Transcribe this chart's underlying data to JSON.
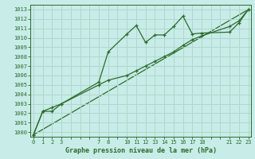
{
  "title": "Graphe pression niveau de la mer (hPa)",
  "bg_color": "#c8ece8",
  "grid_color": "#b0d8cc",
  "line_color": "#2d6b2d",
  "xlim": [
    -0.3,
    23.3
  ],
  "ylim": [
    999.5,
    1013.5
  ],
  "yticks": [
    1000,
    1001,
    1002,
    1003,
    1004,
    1005,
    1006,
    1007,
    1008,
    1009,
    1010,
    1011,
    1012,
    1013
  ],
  "xticks_all": [
    0,
    1,
    2,
    3,
    4,
    5,
    6,
    7,
    8,
    9,
    10,
    11,
    12,
    13,
    14,
    15,
    16,
    17,
    18,
    19,
    20,
    21,
    22,
    23
  ],
  "xtick_labels": [
    "0",
    "1",
    "2",
    "3",
    "",
    "",
    "",
    "7",
    "8",
    "",
    "10",
    "11",
    "12",
    "13",
    "14",
    "15",
    "16",
    "17",
    "18",
    "",
    "",
    "21",
    "22",
    "23"
  ],
  "line1_x": [
    0,
    1,
    2,
    3,
    7,
    8,
    10,
    11,
    12,
    13,
    14,
    15,
    16,
    17,
    18,
    21,
    22,
    23
  ],
  "line1_y": [
    999.7,
    1002.2,
    1002.2,
    1003.0,
    1005.3,
    1008.5,
    1010.4,
    1011.3,
    1009.5,
    1010.3,
    1010.3,
    1011.2,
    1012.3,
    1010.4,
    1010.5,
    1010.6,
    1011.6,
    1013.0
  ],
  "line2_x": [
    0,
    1,
    2,
    3,
    7,
    8,
    10,
    11,
    12,
    13,
    14,
    15,
    16,
    17,
    18,
    21,
    22,
    23
  ],
  "line2_y": [
    999.7,
    1002.2,
    1002.6,
    1003.0,
    1005.0,
    1005.5,
    1006.0,
    1006.5,
    1007.0,
    1007.5,
    1008.0,
    1008.5,
    1009.2,
    1009.8,
    1010.2,
    1011.2,
    1011.8,
    1013.0
  ],
  "line3_x": [
    0,
    23
  ],
  "line3_y": [
    999.7,
    1013.0
  ]
}
